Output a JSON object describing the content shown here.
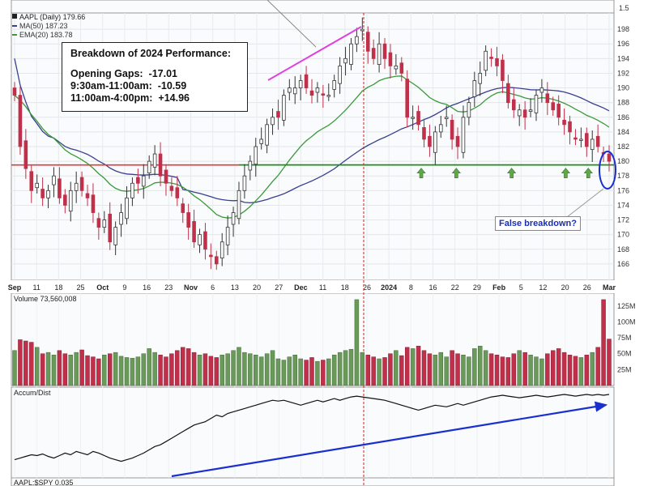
{
  "panels": {
    "price": {
      "legend": {
        "symbol": "AAPL (Daily) 179.66",
        "ma": "MA(50) 187.23",
        "ema": "EMA(20) 183.78"
      },
      "y_ticks": [
        166,
        168,
        170,
        172,
        174,
        176,
        178,
        180,
        182,
        184,
        186,
        188,
        190,
        192,
        194,
        196,
        198
      ],
      "top_tick": "1.5",
      "x_ticks": [
        "Sep",
        "11",
        "18",
        "25",
        "Oct",
        "9",
        "16",
        "23",
        "Nov",
        "6",
        "13",
        "20",
        "27",
        "Dec",
        "11",
        "18",
        "26",
        "2024",
        "8",
        "16",
        "22",
        "29",
        "Feb",
        "5",
        "12",
        "20",
        "26",
        "Mar"
      ]
    },
    "volume": {
      "label": "Volume 73,560,008",
      "y_ticks": [
        "125M",
        "100M",
        "75M",
        "50M",
        "25M"
      ]
    },
    "accum": {
      "label": "Accum/Dist"
    },
    "ratio": {
      "label": "AAPL:$SPY 0.035"
    }
  },
  "annotation_box": {
    "title": "Breakdown of 2024 Performance:",
    "rows": [
      {
        "label": "Opening Gaps:",
        "value": "-17.01"
      },
      {
        "label": "9:30am-11:00am:",
        "value": "-10.59"
      },
      {
        "label": "11:00am-4:00pm:",
        "value": "+14.96"
      }
    ]
  },
  "callout": "False breakdown?",
  "colors": {
    "up": "#6a9a5a",
    "down": "#c0304a",
    "ma50": "#3a3f8f",
    "ema20": "#3a9a3a",
    "support": "#1e8c1e",
    "resistance": "#e23a3a",
    "trend": "#1a2fcf",
    "highlight": "#e040e0"
  },
  "chart_data": {
    "type": "candlestick",
    "title": "AAPL (Daily) 179.66",
    "ylim": [
      164,
      200
    ],
    "support_level": 179.5,
    "arrows_at": [
      "Jan 5",
      "Jan 16",
      "Feb 1",
      "Feb 21",
      "Feb 27"
    ],
    "close": [
      189,
      182,
      179,
      176,
      177,
      175,
      176,
      178,
      175,
      174,
      176,
      177,
      176,
      175,
      173,
      171,
      172,
      169,
      171,
      173,
      175,
      177,
      177,
      178,
      180,
      181,
      178,
      177,
      176,
      175,
      173,
      171,
      169,
      170,
      168,
      167,
      166,
      169,
      171,
      173,
      176,
      178,
      180,
      182,
      183,
      185,
      186,
      186,
      189,
      190,
      190,
      191,
      190,
      189,
      190,
      189,
      189,
      191,
      193,
      194,
      196,
      197,
      198,
      195,
      194,
      196,
      194,
      193,
      193,
      192,
      186,
      186,
      185,
      183,
      182,
      184,
      185,
      186,
      183,
      182,
      186,
      188,
      191,
      192,
      195,
      194,
      193,
      191,
      188,
      187,
      187,
      186,
      187,
      189,
      190,
      188,
      187,
      186,
      185,
      184,
      183,
      183,
      182,
      183,
      182,
      181,
      180
    ],
    "volume_millions": [
      55,
      72,
      70,
      68,
      60,
      50,
      52,
      48,
      55,
      50,
      48,
      52,
      56,
      47,
      45,
      42,
      48,
      50,
      52,
      46,
      44,
      43,
      45,
      50,
      58,
      52,
      48,
      45,
      50,
      55,
      60,
      58,
      52,
      48,
      50,
      46,
      44,
      48,
      50,
      55,
      60,
      52,
      50,
      48,
      45,
      50,
      55,
      42,
      40,
      45,
      48,
      42,
      40,
      44,
      38,
      40,
      42,
      48,
      52,
      55,
      57,
      135,
      52,
      48,
      45,
      42,
      44,
      50,
      55,
      47,
      60,
      58,
      62,
      55,
      50,
      48,
      52,
      45,
      55,
      50,
      48,
      45,
      58,
      62,
      55,
      50,
      48,
      45,
      44,
      50,
      55,
      52,
      48,
      45,
      42,
      50,
      55,
      58,
      52,
      48,
      46,
      44,
      48,
      52,
      60,
      135,
      73
    ],
    "accum_dist": [
      20,
      22,
      24,
      26,
      25,
      27,
      24,
      22,
      25,
      28,
      26,
      30,
      28,
      26,
      30,
      28,
      25,
      22,
      20,
      18,
      20,
      22,
      25,
      28,
      32,
      36,
      38,
      42,
      46,
      50,
      54,
      58,
      62,
      64,
      66,
      70,
      74,
      72,
      76,
      78,
      80,
      82,
      84,
      86,
      88,
      90,
      92,
      91,
      92,
      90,
      88,
      86,
      88,
      90,
      92,
      90,
      92,
      94,
      92,
      94,
      96,
      97,
      96,
      95,
      94,
      93,
      92,
      90,
      88,
      86,
      84,
      82,
      80,
      82,
      84,
      86,
      85,
      84,
      86,
      88,
      86,
      88,
      90,
      92,
      94,
      96,
      97,
      98,
      97,
      96,
      95,
      96,
      97,
      98,
      97,
      96,
      97,
      98,
      99,
      98,
      97,
      98,
      99,
      98,
      99,
      98,
      99
    ]
  }
}
